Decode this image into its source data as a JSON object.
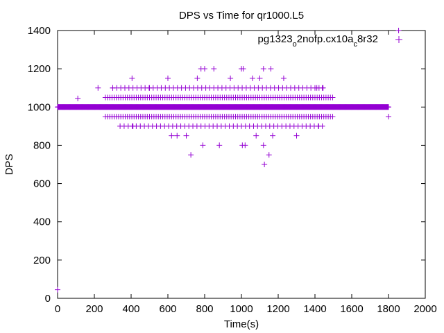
{
  "chart_data": {
    "type": "scatter",
    "title": "DPS vs Time for qr1000.L5",
    "xlabel": "Time(s)",
    "ylabel": "DPS",
    "xlim": [
      0,
      2000
    ],
    "ylim": [
      0,
      1400
    ],
    "xticks": [
      0,
      200,
      400,
      600,
      800,
      1000,
      1200,
      1400,
      1600,
      1800,
      2000
    ],
    "yticks": [
      0,
      200,
      400,
      600,
      800,
      1000,
      1200,
      1400
    ],
    "grid": false,
    "legend": {
      "position": "top-right",
      "parts": [
        {
          "text": "pg1323",
          "sub": false
        },
        {
          "text": "o",
          "sub": true
        },
        {
          "text": "2nofp.cx10a",
          "sub": false
        },
        {
          "text": "c",
          "sub": true
        },
        {
          "text": "8r32",
          "sub": false
        }
      ]
    },
    "series": [
      {
        "name": "pg1323o2nofp.cx10ac8r32",
        "color": "#9400d3",
        "marker": "plus",
        "dense_bands": [
          {
            "x": [
              0,
              1800
            ],
            "y": 1000,
            "step": 2
          }
        ],
        "band_rows": [
          {
            "y": 1050,
            "x": [
              260,
              1500
            ],
            "step": 12
          },
          {
            "y": 950,
            "x": [
              260,
              1500
            ],
            "step": 12
          },
          {
            "y": 1100,
            "x": [
              300,
              1450
            ],
            "step": 22
          },
          {
            "y": 900,
            "x": [
              340,
              1440
            ],
            "step": 22
          }
        ],
        "points": [
          [
            0,
            45
          ],
          [
            110,
            1045
          ],
          [
            220,
            1100
          ],
          [
            300,
            1100
          ],
          [
            405,
            1150
          ],
          [
            410,
            900
          ],
          [
            500,
            1100
          ],
          [
            600,
            1150
          ],
          [
            620,
            850
          ],
          [
            650,
            850
          ],
          [
            700,
            850
          ],
          [
            725,
            750
          ],
          [
            760,
            1150
          ],
          [
            780,
            1200
          ],
          [
            790,
            800
          ],
          [
            800,
            1200
          ],
          [
            850,
            1200
          ],
          [
            880,
            800
          ],
          [
            940,
            1150
          ],
          [
            1000,
            1200
          ],
          [
            1005,
            800
          ],
          [
            1010,
            1200
          ],
          [
            1020,
            800
          ],
          [
            1060,
            1150
          ],
          [
            1080,
            850
          ],
          [
            1100,
            1150
          ],
          [
            1120,
            1200
          ],
          [
            1120,
            800
          ],
          [
            1125,
            700
          ],
          [
            1150,
            750
          ],
          [
            1160,
            1200
          ],
          [
            1170,
            850
          ],
          [
            1230,
            1150
          ],
          [
            1300,
            850
          ],
          [
            1410,
            1100
          ],
          [
            1420,
            900
          ],
          [
            1440,
            1100
          ],
          [
            1800,
            950
          ],
          [
            1855,
            1400
          ]
        ]
      }
    ]
  }
}
